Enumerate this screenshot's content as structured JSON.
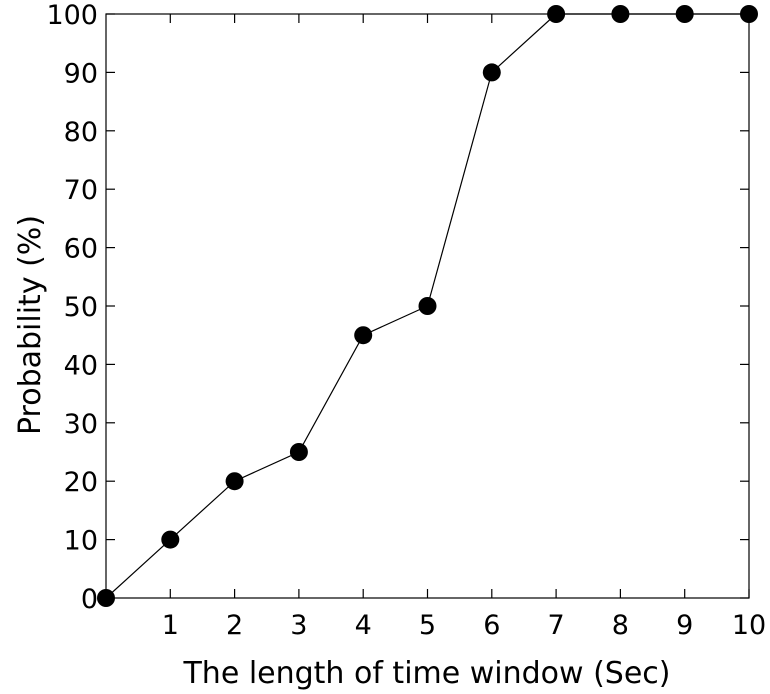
{
  "chart_data": {
    "type": "line",
    "title": "",
    "xlabel": "The length of time window (Sec)",
    "ylabel": "Probability (%)",
    "x": [
      0,
      1,
      2,
      3,
      4,
      5,
      6,
      7,
      8,
      9,
      10
    ],
    "series": [
      {
        "name": "Probability",
        "values": [
          0,
          10,
          20,
          25,
          45,
          50,
          90,
          100,
          100,
          100,
          100
        ],
        "marker": "filled-circle",
        "color": "#000000"
      }
    ],
    "xlim": [
      0,
      10
    ],
    "ylim": [
      0,
      100
    ],
    "xticks": [
      1,
      2,
      3,
      4,
      5,
      6,
      7,
      8,
      9,
      10
    ],
    "yticks": [
      0,
      10,
      20,
      30,
      40,
      50,
      60,
      70,
      80,
      90,
      100
    ],
    "grid": false,
    "legend": "none"
  }
}
